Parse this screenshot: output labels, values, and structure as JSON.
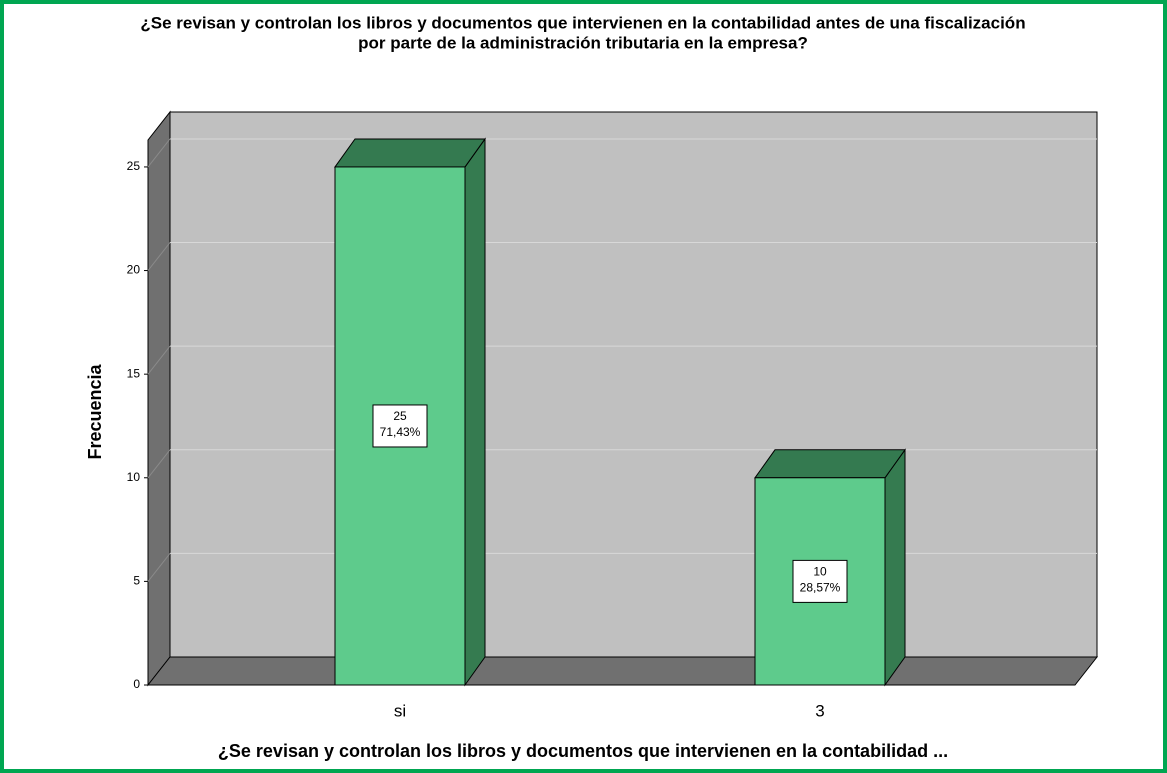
{
  "chart_data": {
    "type": "bar3d",
    "title": [
      "¿Se revisan y controlan los libros y documentos que intervienen en la contabilidad antes de una fiscalización",
      "por parte de la administración tributaria en la empresa?"
    ],
    "x_label": "¿Se revisan y controlan los libros y documentos que intervienen en la contabilidad ...",
    "y_label": "Frecuencia",
    "categories": [
      "si",
      "3"
    ],
    "values": [
      25,
      10
    ],
    "percentages": [
      71.43,
      28.57
    ],
    "percentage_labels": [
      "71,43%",
      "28,57%"
    ],
    "color": "#5ecb8c",
    "ylim": [
      0,
      26.3
    ],
    "yticks": [
      0,
      5,
      10,
      15,
      20,
      25
    ],
    "grid": true
  }
}
